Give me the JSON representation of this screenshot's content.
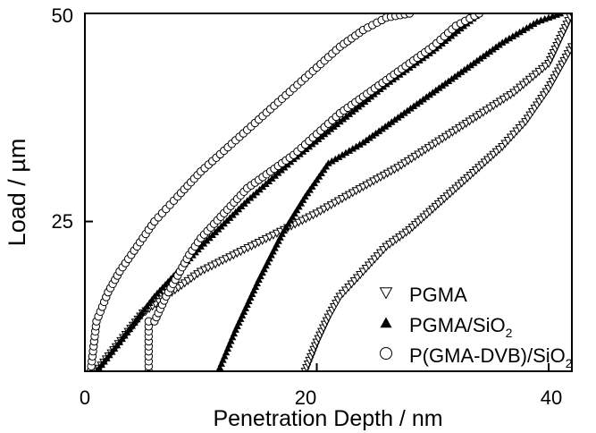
{
  "chart_data": {
    "type": "scatter",
    "title": "",
    "xlabel": "Penetration Depth / nm",
    "ylabel": "Load / µm",
    "xlim": [
      0,
      42
    ],
    "ylim": [
      7,
      50
    ],
    "x_ticks": [
      0,
      20,
      40
    ],
    "x_tick_labels": [
      "0",
      "20",
      "40"
    ],
    "y_ticks": [
      25,
      50
    ],
    "y_tick_labels": [
      "25",
      "50"
    ],
    "grid": false,
    "legend_position": "bottom-right",
    "series": [
      {
        "name": "PGMA",
        "name_sub": "",
        "marker": "triangle-down-open",
        "segments": [
          {
            "x": [
              1.0,
              5.0,
              10.0,
              15.0,
              20.0,
              22.5,
              27.0,
              32.0,
              37.0,
              40.0,
              42.0
            ],
            "y": [
              7,
              14,
              19,
              22.5,
              26,
              28,
              31.5,
              36,
              40.5,
              44,
              50
            ]
          }
        ]
      },
      {
        "name": "PGMA/SiO",
        "name_sub": "2",
        "marker": "triangle-up-filled",
        "segments": [
          {
            "x": [
              1.0,
              3.0,
              6.0,
              10.0,
              14.0,
              18.0,
              22.0,
              26.0,
              30.0,
              34.0
            ],
            "y": [
              7,
              10.5,
              16,
              22,
              27.5,
              32.5,
              37,
              41.5,
              45.5,
              50
            ]
          },
          {
            "x": [
              11.5,
              13.0,
              15.0,
              17.0,
              19.0,
              21.0,
              24.0,
              27.0,
              30.0,
              33.0,
              36.0,
              39.0,
              41.0
            ],
            "y": [
              7,
              12,
              18,
              23.5,
              28,
              32,
              34.5,
              37.5,
              40.5,
              43.5,
              46.5,
              49,
              50
            ]
          }
        ]
      },
      {
        "name": "P(GMA-DVB)/SiO",
        "name_sub": "2",
        "marker": "circle-open",
        "segments": [
          {
            "x": [
              0.5,
              1.0,
              2.0,
              3.0,
              4.0,
              5.0,
              6.0,
              7.0,
              8.0,
              10.0,
              12.0,
              14.0,
              16.0,
              18.0,
              20.0,
              22.0,
              24.0,
              26.0,
              28.0
            ],
            "y": [
              7,
              13,
              16.5,
              19,
              21,
              23,
              25,
              26.5,
              28,
              31,
              33.5,
              36,
              38.5,
              41,
              43.5,
              46,
              48,
              49.5,
              50
            ]
          },
          {
            "x": [
              5.5,
              5.5
            ],
            "y": [
              7,
              13
            ]
          },
          {
            "x": [
              6.0,
              7.0,
              8.0,
              9.0,
              10.0,
              12.0,
              14.0,
              16.0,
              18.0,
              20.0,
              22.0,
              24.0,
              26.0,
              28.0,
              30.0,
              32.0,
              34.0
            ],
            "y": [
              13,
              16,
              18.5,
              21,
              23,
              26,
              29,
              31,
              33,
              35.5,
              38,
              40,
              42,
              44,
              46,
              48.5,
              50
            ]
          }
        ]
      },
      {
        "name": "",
        "name_sub": "",
        "marker": "triangle-down-open",
        "segments": [
          {
            "x": [
              19.0,
              20.0,
              21.0,
              22.0,
              24.0,
              26.0,
              28.0,
              30.0,
              32.0,
              34.0,
              36.0,
              38.0,
              40.0,
              42.0
            ],
            "y": [
              7,
              10.5,
              13.5,
              16,
              19,
              22,
              24,
              26.5,
              29,
              31.5,
              34,
              37,
              41,
              46
            ]
          }
        ]
      }
    ]
  }
}
